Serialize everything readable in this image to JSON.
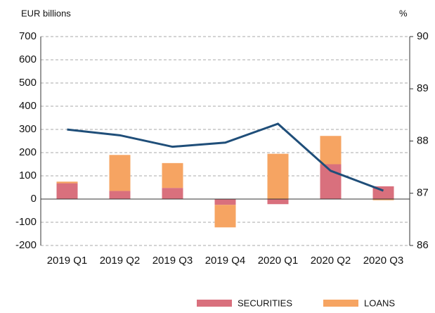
{
  "chart_data": {
    "type": "bar",
    "y_label": "EUR billions",
    "y2_label": "%",
    "categories": [
      "2019 Q1",
      "2019 Q2",
      "2019 Q3",
      "2019 Q4",
      "2020 Q1",
      "2020 Q2",
      "2020 Q3"
    ],
    "series": [
      {
        "name": "SECURITIES",
        "color": "#d9707d",
        "values": [
          68,
          35,
          48,
          -25,
          -22,
          150,
          55
        ]
      },
      {
        "name": "LOANS",
        "color": "#f6a462",
        "values": [
          7,
          155,
          107,
          -97,
          195,
          122,
          -5
        ]
      },
      {
        "type": "line",
        "axis": "y2",
        "color": "#1f4e79",
        "values": [
          88.22,
          88.11,
          87.89,
          87.97,
          88.33,
          87.43,
          87.05
        ]
      }
    ],
    "ylim": [
      -200,
      700
    ],
    "yticks": [
      -200,
      -100,
      0,
      100,
      200,
      300,
      400,
      500,
      600,
      700
    ],
    "y2lim": [
      86,
      90
    ],
    "y2ticks": [
      86,
      87,
      88,
      89,
      90
    ],
    "grid": true,
    "legend": "bottom-right"
  }
}
